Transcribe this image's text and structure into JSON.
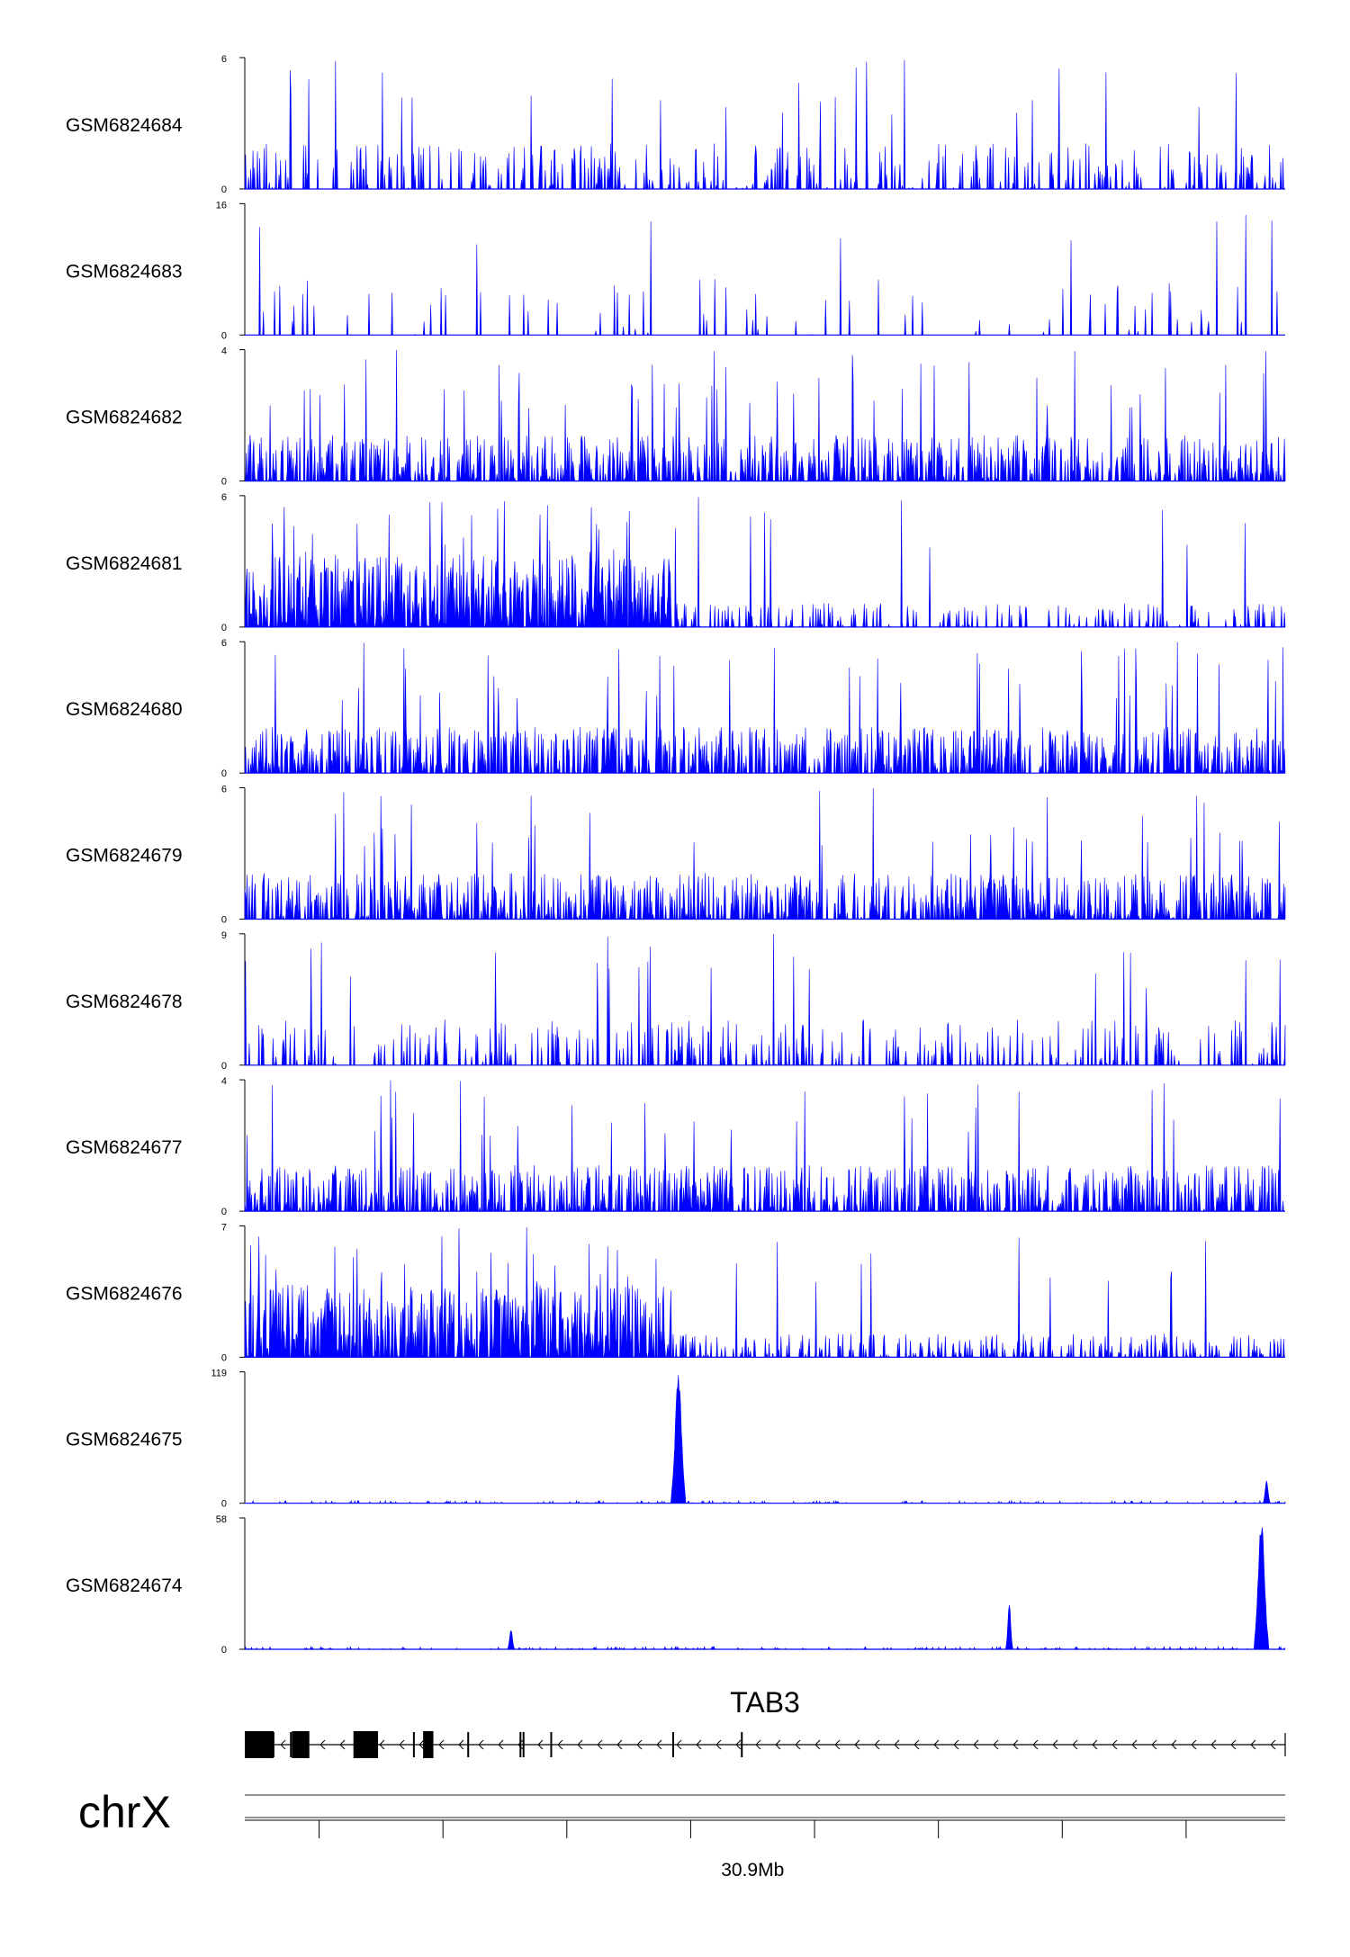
{
  "chart_data": {
    "type": "area",
    "chromosome": "chrX",
    "fill_color": "#0000ff",
    "gene_color": "#000000",
    "tracks": [
      {
        "name": "GSM6824684",
        "ymax": 6,
        "ymin": 0,
        "profile": "sparse-uniform"
      },
      {
        "name": "GSM6824683",
        "ymax": 16,
        "ymin": 0,
        "profile": "very-sparse"
      },
      {
        "name": "GSM6824682",
        "ymax": 4,
        "ymin": 0,
        "profile": "dense-uniform"
      },
      {
        "name": "GSM6824681",
        "ymax": 6,
        "ymin": 0,
        "profile": "dense-left"
      },
      {
        "name": "GSM6824680",
        "ymax": 6,
        "ymin": 0,
        "profile": "dense-uniform"
      },
      {
        "name": "GSM6824679",
        "ymax": 6,
        "ymin": 0,
        "profile": "dense-uniform"
      },
      {
        "name": "GSM6824678",
        "ymax": 9,
        "ymin": 0,
        "profile": "sparse-uniform"
      },
      {
        "name": "GSM6824677",
        "ymax": 4,
        "ymin": 0,
        "profile": "dense-uniform"
      },
      {
        "name": "GSM6824676",
        "ymax": 7,
        "ymin": 0,
        "profile": "dense-left"
      },
      {
        "name": "GSM6824675",
        "ymax": 119,
        "ymin": 0,
        "profile": "peaks",
        "peaks": [
          {
            "pos": 0.417,
            "height": 119
          },
          {
            "pos": 0.982,
            "height": 22
          }
        ]
      },
      {
        "name": "GSM6824674",
        "ymax": 58,
        "ymin": 0,
        "profile": "peaks",
        "peaks": [
          {
            "pos": 0.256,
            "height": 9
          },
          {
            "pos": 0.735,
            "height": 22
          },
          {
            "pos": 0.977,
            "height": 58
          }
        ]
      }
    ],
    "gene": {
      "name": "TAB3",
      "strand": "-",
      "exons": [
        {
          "start": 0.0,
          "end": 0.028,
          "thick": true
        },
        {
          "start": 0.046,
          "end": 0.063,
          "thick": true
        },
        {
          "start": 0.106,
          "end": 0.13,
          "thick": true
        },
        {
          "start": 0.174,
          "end": 0.184,
          "thick": true
        },
        {
          "start": 0.028,
          "end": 0.029,
          "thick": false
        },
        {
          "start": 0.045,
          "end": 0.046,
          "thick": false
        },
        {
          "start": 0.165,
          "end": 0.166,
          "thick": false
        },
        {
          "start": 0.218,
          "end": 0.219,
          "thick": false
        },
        {
          "start": 0.269,
          "end": 0.27,
          "thick": false
        },
        {
          "start": 0.272,
          "end": 0.273,
          "thick": false
        },
        {
          "start": 0.299,
          "end": 0.3,
          "thick": false
        },
        {
          "start": 0.418,
          "end": 0.419,
          "thick": false
        },
        {
          "start": 0.485,
          "end": 0.486,
          "thick": false
        }
      ]
    },
    "axis": {
      "tick_count": 8,
      "labeled_tick": {
        "index": 3.5,
        "label": "30.9Mb"
      }
    }
  }
}
